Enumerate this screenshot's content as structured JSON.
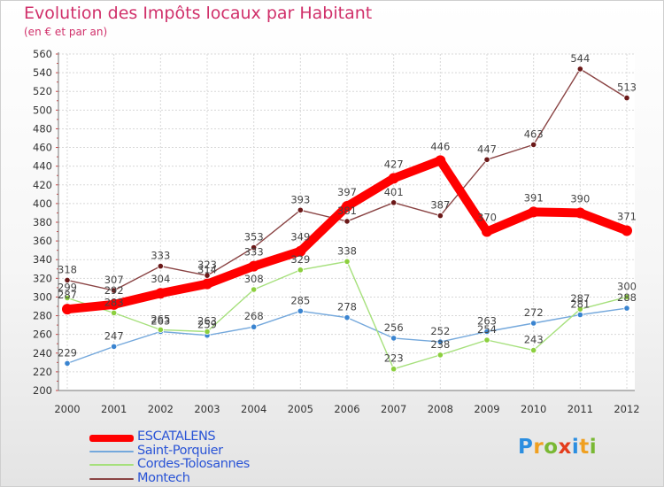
{
  "header": {
    "title": "Evolution des Impôts locaux par Habitant",
    "subtitle": "(en € et par an)"
  },
  "logo": {
    "text": "Proxiti",
    "letters": [
      "P",
      "r",
      "o",
      "x",
      "i",
      "t",
      "i"
    ]
  },
  "chart_data": {
    "type": "line",
    "title": "Evolution des Impôts locaux par Habitant",
    "subtitle": "(en € et par an)",
    "xlabel": "",
    "ylabel": "",
    "ylim": [
      200,
      560
    ],
    "ytick_step": 20,
    "grid": true,
    "legend_position": "bottom-left",
    "categories": [
      "2000",
      "2001",
      "2002",
      "2003",
      "2004",
      "2005",
      "2006",
      "2007",
      "2008",
      "2009",
      "2010",
      "2011",
      "2012"
    ],
    "series": [
      {
        "name": "ESCATALENS",
        "color": "#ff0000",
        "marker": "#ff0000",
        "weight": "thick",
        "values": [
          287,
          292,
          304,
          314,
          333,
          349,
          397,
          427,
          446,
          370,
          391,
          390,
          371
        ]
      },
      {
        "name": "Saint-Porquier",
        "color": "#74a8dc",
        "marker": "#3a84d0",
        "weight": "thin",
        "values": [
          229,
          247,
          263,
          259,
          268,
          285,
          278,
          256,
          252,
          263,
          272,
          281,
          288
        ]
      },
      {
        "name": "Cordes-Tolosannes",
        "color": "#a6e07c",
        "marker": "#8ccf3e",
        "weight": "thin",
        "values": [
          299,
          283,
          265,
          263,
          308,
          329,
          338,
          223,
          238,
          254,
          243,
          287,
          300
        ]
      },
      {
        "name": "Montech",
        "color": "#8a4444",
        "marker": "#6b1818",
        "weight": "thin",
        "values": [
          318,
          307,
          333,
          323,
          353,
          393,
          381,
          401,
          387,
          447,
          463,
          544,
          513
        ]
      }
    ]
  }
}
